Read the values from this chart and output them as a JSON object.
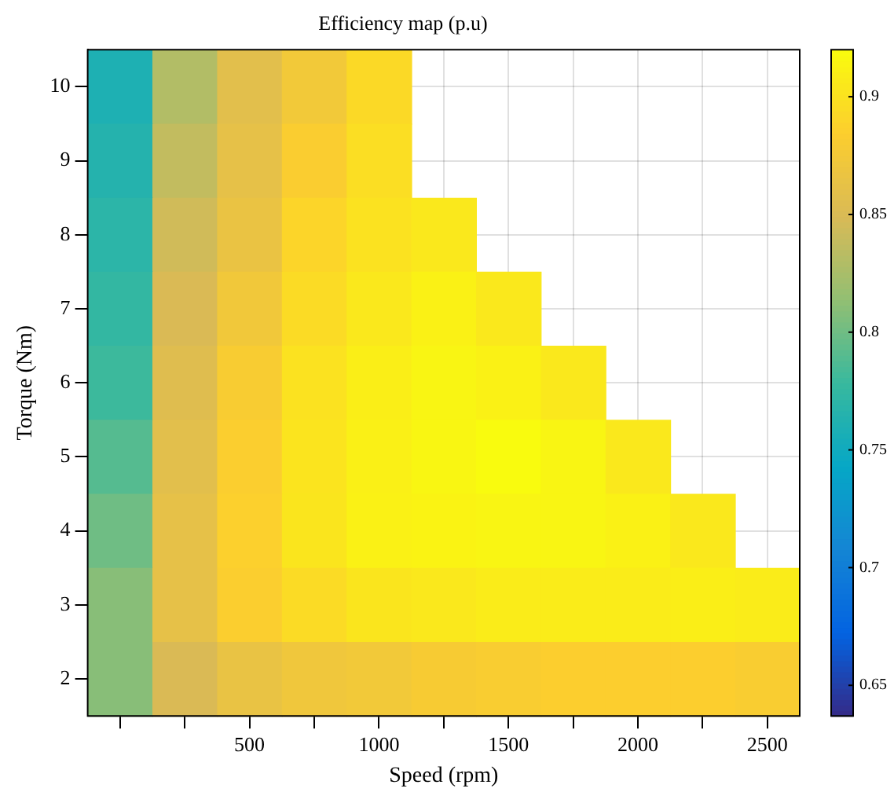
{
  "chart_data": {
    "type": "heatmap",
    "title": "Efficiency map (p.u)",
    "xlabel": "Speed (rpm)",
    "ylabel": "Torque (Nm)",
    "categories": [
      null,
      null,
      "500",
      null,
      "1000",
      null,
      "1500",
      null,
      "2000",
      null,
      "2500"
    ],
    "y_categories": [
      "10",
      "9",
      "8",
      "7",
      "6",
      "5",
      "4",
      "3",
      "2"
    ],
    "cells": [
      [
        0.76,
        0.83,
        0.858,
        0.875,
        0.893,
        null,
        null,
        null,
        null,
        null,
        null
      ],
      [
        0.765,
        0.838,
        0.862,
        0.883,
        0.897,
        null,
        null,
        null,
        null,
        null,
        null
      ],
      [
        0.77,
        0.845,
        0.866,
        0.89,
        0.9,
        0.905,
        null,
        null,
        null,
        null,
        null
      ],
      [
        0.775,
        0.85,
        0.874,
        0.895,
        0.905,
        0.912,
        0.905,
        null,
        null,
        null,
        null
      ],
      [
        0.78,
        0.855,
        0.881,
        0.9,
        0.91,
        0.915,
        0.912,
        0.905,
        null,
        null,
        null
      ],
      [
        0.79,
        0.858,
        0.884,
        0.902,
        0.911,
        0.916,
        0.92,
        0.915,
        0.905,
        null,
        null
      ],
      [
        0.8,
        0.862,
        0.886,
        0.903,
        0.912,
        0.914,
        0.915,
        0.915,
        0.912,
        0.905,
        null
      ],
      [
        0.81,
        0.862,
        0.884,
        0.895,
        0.903,
        0.905,
        0.908,
        0.908,
        0.908,
        0.91,
        0.908
      ],
      [
        0.81,
        0.85,
        0.865,
        0.872,
        0.875,
        0.88,
        0.882,
        0.885,
        0.885,
        0.885,
        0.882
      ]
    ],
    "clim": [
      0.637,
      0.92
    ],
    "cticks": [
      0.65,
      0.7,
      0.75,
      0.8,
      0.85,
      0.9
    ],
    "grid": true
  }
}
